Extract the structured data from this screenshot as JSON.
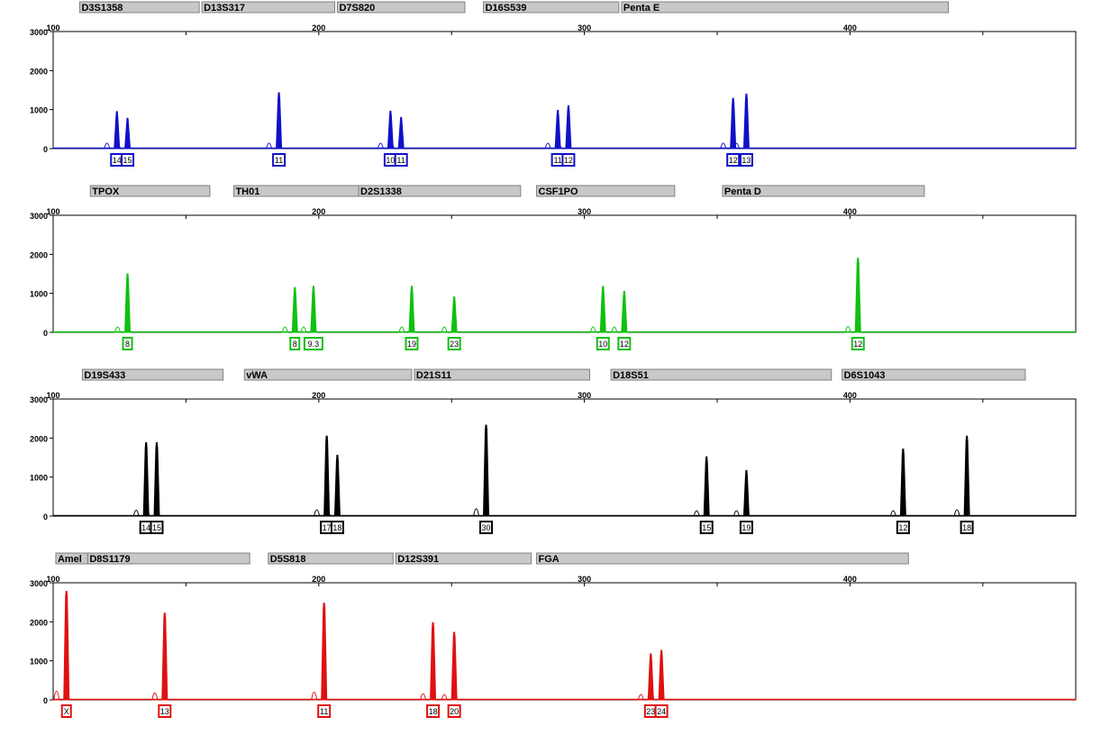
{
  "chart_data": [
    {
      "type": "line",
      "dye": "blue",
      "color": "#1010c8",
      "x_ticks": [
        "100",
        "200",
        "300",
        "400"
      ],
      "xlim": [
        100,
        485
      ],
      "y_ticks": [
        "3000",
        "2000",
        "1000",
        "0"
      ],
      "ylim": [
        0,
        3000
      ],
      "loci": [
        {
          "name": "D3S1358",
          "range": [
            110,
            155
          ]
        },
        {
          "name": "D13S317",
          "range": [
            156,
            206
          ]
        },
        {
          "name": "D7S820",
          "range": [
            207,
            255
          ]
        },
        {
          "name": "D16S539",
          "range": [
            262,
            313
          ]
        },
        {
          "name": "Penta E",
          "range": [
            314,
            437
          ]
        }
      ],
      "peaks": [
        {
          "x": 124,
          "height": 950,
          "label": "14"
        },
        {
          "x": 128,
          "height": 780,
          "label": "15"
        },
        {
          "x": 185,
          "height": 1430,
          "label": "11"
        },
        {
          "x": 227,
          "height": 960,
          "label": "10"
        },
        {
          "x": 231,
          "height": 800,
          "label": "11"
        },
        {
          "x": 290,
          "height": 980,
          "label": "11"
        },
        {
          "x": 294,
          "height": 1100,
          "label": "12"
        },
        {
          "x": 356,
          "height": 1290,
          "label": "12"
        },
        {
          "x": 361,
          "height": 1400,
          "label": "13"
        }
      ]
    },
    {
      "type": "line",
      "dye": "green",
      "color": "#10c010",
      "x_ticks": [
        "100",
        "200",
        "300",
        "400"
      ],
      "xlim": [
        100,
        485
      ],
      "y_ticks": [
        "3000",
        "2000",
        "1000",
        "0"
      ],
      "ylim": [
        0,
        3000
      ],
      "loci": [
        {
          "name": "TPOX",
          "range": [
            114,
            159
          ]
        },
        {
          "name": "TH01",
          "range": [
            168,
            215
          ]
        },
        {
          "name": "D2S1338",
          "range": [
            215,
            276
          ]
        },
        {
          "name": "CSF1PO",
          "range": [
            282,
            334
          ]
        },
        {
          "name": "Penta D",
          "range": [
            352,
            428
          ]
        }
      ],
      "peaks": [
        {
          "x": 128,
          "height": 1500,
          "label": "8"
        },
        {
          "x": 191,
          "height": 1150,
          "label": "8"
        },
        {
          "x": 198,
          "height": 1180,
          "label": "9.3"
        },
        {
          "x": 235,
          "height": 1180,
          "label": "19"
        },
        {
          "x": 251,
          "height": 910,
          "label": "23"
        },
        {
          "x": 307,
          "height": 1180,
          "label": "10"
        },
        {
          "x": 315,
          "height": 1050,
          "label": "12"
        },
        {
          "x": 403,
          "height": 1900,
          "label": "12"
        }
      ]
    },
    {
      "type": "line",
      "dye": "black",
      "color": "#000000",
      "x_ticks": [
        "100",
        "200",
        "300",
        "400"
      ],
      "xlim": [
        100,
        485
      ],
      "y_ticks": [
        "3000",
        "2000",
        "1000",
        "0"
      ],
      "ylim": [
        0,
        3000
      ],
      "loci": [
        {
          "name": "D19S433",
          "range": [
            111,
            164
          ]
        },
        {
          "name": "vWA",
          "range": [
            172,
            235
          ]
        },
        {
          "name": "D21S11",
          "range": [
            236,
            302
          ]
        },
        {
          "name": "D18S51",
          "range": [
            310,
            393
          ]
        },
        {
          "name": "D6S1043",
          "range": [
            397,
            466
          ]
        }
      ],
      "peaks": [
        {
          "x": 135,
          "height": 1880,
          "label": "14"
        },
        {
          "x": 139,
          "height": 1880,
          "label": "15"
        },
        {
          "x": 203,
          "height": 2050,
          "label": "17"
        },
        {
          "x": 207,
          "height": 1560,
          "label": "18"
        },
        {
          "x": 263,
          "height": 2330,
          "label": "30"
        },
        {
          "x": 346,
          "height": 1520,
          "label": "15"
        },
        {
          "x": 361,
          "height": 1170,
          "label": "19"
        },
        {
          "x": 420,
          "height": 1720,
          "label": "12"
        },
        {
          "x": 444,
          "height": 2050,
          "label": "18"
        }
      ]
    },
    {
      "type": "line",
      "dye": "red",
      "color": "#e01010",
      "x_ticks": [
        "100",
        "200",
        "300",
        "400"
      ],
      "xlim": [
        100,
        485
      ],
      "y_ticks": [
        "3000",
        "2000",
        "1000",
        "0"
      ],
      "ylim": [
        0,
        3000
      ],
      "loci": [
        {
          "name": "Amel",
          "range": [
            101,
            113
          ]
        },
        {
          "name": "D8S1179",
          "range": [
            113,
            174
          ]
        },
        {
          "name": "D5S818",
          "range": [
            181,
            228
          ]
        },
        {
          "name": "D12S391",
          "range": [
            229,
            280
          ]
        },
        {
          "name": "FGA",
          "range": [
            282,
            422
          ]
        }
      ],
      "peaks": [
        {
          "x": 105,
          "height": 2780,
          "label": "X"
        },
        {
          "x": 142,
          "height": 2220,
          "label": "13"
        },
        {
          "x": 202,
          "height": 2480,
          "label": "11"
        },
        {
          "x": 243,
          "height": 1980,
          "label": "18"
        },
        {
          "x": 251,
          "height": 1730,
          "label": "20"
        },
        {
          "x": 325,
          "height": 1180,
          "label": "23"
        },
        {
          "x": 329,
          "height": 1270,
          "label": "24"
        }
      ]
    }
  ]
}
